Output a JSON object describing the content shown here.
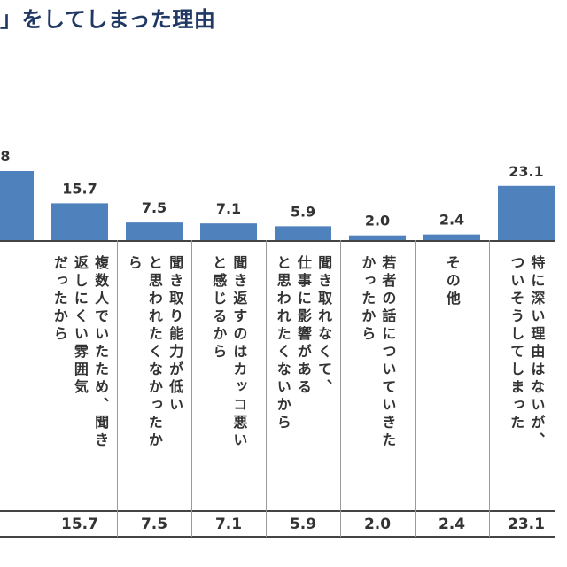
{
  "title": "」をしてしまった理由",
  "chart_data": {
    "type": "bar",
    "categories": [
      "",
      "複数人でいたため、聞き返しにくい雰囲気だったから",
      "聞き取り能力が低いと思われたくなかったから",
      "聞き返すのはカッコ悪いと感じるから",
      "聞き取れなくて、仕事に影響があると思われたくないから",
      "若者の話についていきたかったから",
      "その他",
      "特に深い理由はないが、ついそうしてしまった"
    ],
    "category_lines": [
      [
        ""
      ],
      [
        "複数人でいたため、聞き",
        "返しにくい雰囲気",
        "だったから"
      ],
      [
        "聞き取り能力が低い",
        "と思われたくなかったか",
        "ら"
      ],
      [
        "聞き返すのはカッコ悪い",
        "と感じるから"
      ],
      [
        "聞き取れなくて、",
        "仕事に影響がある",
        "と思われたくないから"
      ],
      [
        "若者の話についていきた",
        "かったから"
      ],
      [
        "その他"
      ],
      [
        "特に深い理由はないが、",
        "ついそうしてしまった"
      ]
    ],
    "values": [
      null,
      15.7,
      7.5,
      7.1,
      5.9,
      2.0,
      2.4,
      23.1
    ],
    "value_labels": [
      "8",
      "15.7",
      "7.5",
      "7.1",
      "5.9",
      "2.0",
      "2.4",
      "23.1"
    ],
    "table_values": [
      "",
      "15.7",
      "7.5",
      "7.1",
      "5.9",
      "2.0",
      "2.4",
      "23.1"
    ],
    "bar_color": "#4f81bd"
  }
}
